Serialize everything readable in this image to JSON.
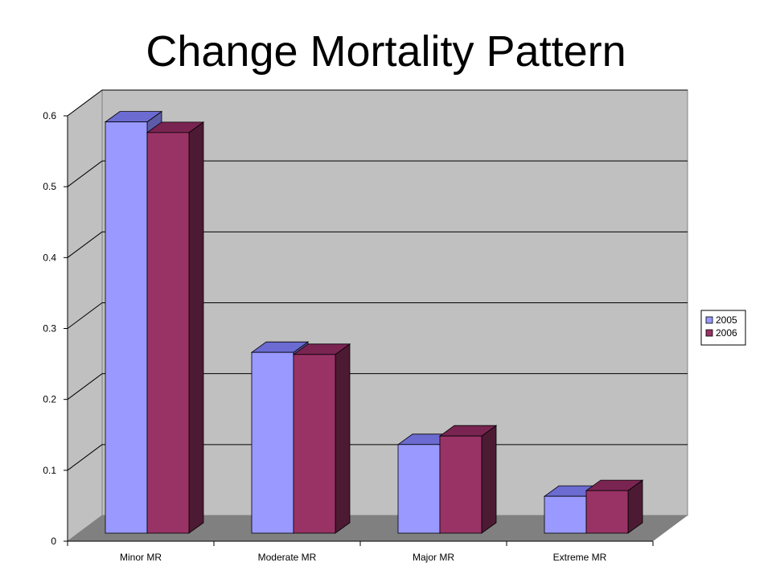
{
  "title": "Change Mortality Pattern",
  "colors": {
    "wall": "#c0c0c0",
    "floor": "#808080",
    "grid": "#000000",
    "series_2005_front": "#9999ff",
    "series_2005_top": "#6b6bd1",
    "series_2005_side": "#5c5ca8",
    "series_2006_front": "#993366",
    "series_2006_top": "#7a2452",
    "series_2006_side": "#4d1a33"
  },
  "chart_data": {
    "type": "bar",
    "title": "Change Mortality Pattern",
    "xlabel": "",
    "ylabel": "",
    "categories": [
      "Minor MR",
      "Moderate MR",
      "Major MR",
      "Extreme MR"
    ],
    "series": [
      {
        "name": "2005",
        "values": [
          0.58,
          0.255,
          0.125,
          0.052
        ]
      },
      {
        "name": "2006",
        "values": [
          0.565,
          0.252,
          0.137,
          0.06
        ]
      }
    ],
    "ylim": [
      0,
      0.6
    ],
    "yticks": [
      "0",
      "0.1",
      "0.2",
      "0.3",
      "0.4",
      "0.5",
      "0.6"
    ],
    "grid": true,
    "legend_position": "right",
    "style": "3d-clustered"
  }
}
